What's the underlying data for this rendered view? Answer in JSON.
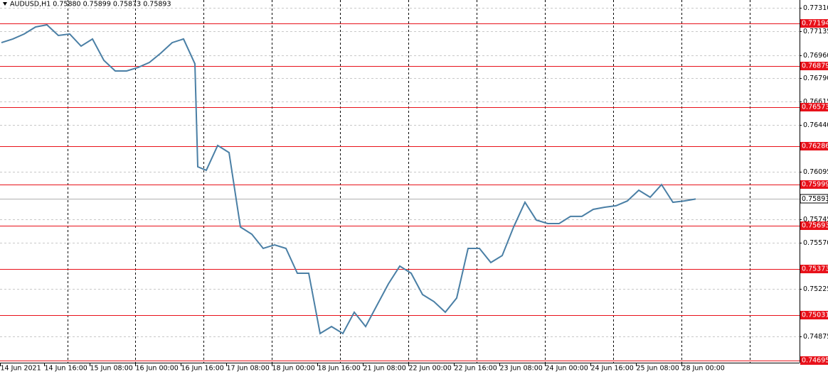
{
  "chart_data": {
    "type": "line",
    "title": "AUDUSD,H1  0.75880 0.75899 0.75873 0.75893",
    "x": [
      1,
      5,
      9,
      13,
      17,
      21,
      25,
      29,
      33,
      37,
      41,
      45,
      49,
      53,
      57,
      61,
      65,
      69,
      70,
      73,
      77,
      81,
      85,
      89,
      93,
      97,
      101,
      105,
      109,
      113,
      117,
      121,
      125,
      129,
      133,
      137,
      141,
      145,
      149,
      153,
      157,
      161,
      165,
      169,
      173,
      177,
      181,
      185,
      189,
      193,
      197,
      201,
      205,
      209,
      213,
      217,
      221,
      225,
      229,
      233,
      237,
      241,
      245
    ],
    "series": [
      {
        "name": "AUDUSD",
        "color": "#4a7fa5",
        "values": [
          0.77052,
          0.77079,
          0.77116,
          0.77168,
          0.77184,
          0.77105,
          0.77116,
          0.77026,
          0.77079,
          0.76921,
          0.76842,
          0.76842,
          0.76868,
          0.76905,
          0.76974,
          0.77052,
          0.77079,
          0.76895,
          0.76132,
          0.76106,
          0.7629,
          0.76237,
          0.75685,
          0.75632,
          0.75527,
          0.75553,
          0.75527,
          0.75343,
          0.75343,
          0.74896,
          0.74948,
          0.74896,
          0.75054,
          0.74948,
          0.75106,
          0.75264,
          0.75396,
          0.75343,
          0.75185,
          0.75133,
          0.75054,
          0.75159,
          0.75527,
          0.75527,
          0.75422,
          0.75474,
          0.75685,
          0.75869,
          0.75737,
          0.75711,
          0.75711,
          0.75764,
          0.75764,
          0.75816,
          0.75832,
          0.75843,
          0.75879,
          0.75958,
          0.75906,
          0.76,
          0.75869,
          0.75879,
          0.75893
        ]
      }
    ],
    "xlim": [
      0.5,
      281.5
    ],
    "xticks": [
      {
        "value": 0,
        "label": "14 Jun 2021"
      },
      {
        "value": 16,
        "label": "14 Jun 16:00"
      },
      {
        "value": 32,
        "label": "15 Jun 08:00"
      },
      {
        "value": 48,
        "label": "16 Jun 00:00"
      },
      {
        "value": 64,
        "label": "16 Jun 16:00"
      },
      {
        "value": 80,
        "label": "17 Jun 08:00"
      },
      {
        "value": 96,
        "label": "18 Jun 00:00"
      },
      {
        "value": 112,
        "label": "18 Jun 16:00"
      },
      {
        "value": 128,
        "label": "21 Jun 08:00"
      },
      {
        "value": 144,
        "label": "22 Jun 00:00"
      },
      {
        "value": 160,
        "label": "22 Jun 16:00"
      },
      {
        "value": 176,
        "label": "23 Jun 08:00"
      },
      {
        "value": 192,
        "label": "24 Jun 00:00"
      },
      {
        "value": 208,
        "label": "24 Jun 16:00"
      },
      {
        "value": 224,
        "label": "25 Jun 08:00"
      },
      {
        "value": 240,
        "label": "28 Jun 00:00"
      }
    ],
    "ylim": [
      0.7468,
      0.77368
    ],
    "yticks": [
      {
        "value": 0.7731,
        "label": "0.77310"
      },
      0.77135,
      {
        "value": 0.7696,
        "label": "0.76960"
      },
      {
        "value": 0.7679,
        "label": "0.76790"
      },
      0.76615,
      {
        "value": 0.7644,
        "label": "0.76440"
      },
      0.76095,
      0.75745,
      {
        "value": 0.7557,
        "label": "0.75570"
      },
      0.75225,
      0.74875
    ],
    "grid": true,
    "levels": [
      0.77194,
      0.76879,
      0.76573,
      0.76286,
      0.75999,
      0.75693,
      0.75373,
      0.75031,
      0.74695
    ],
    "level_color": "#e8111a",
    "current_price": 0.75893
  }
}
